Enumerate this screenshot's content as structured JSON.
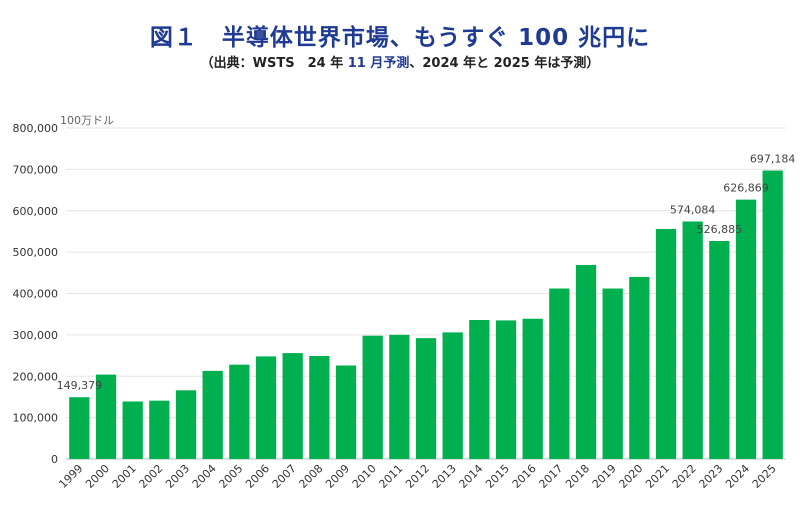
{
  "header": {
    "title": "図１　半導体世界市場、もうすぐ 100 兆円に",
    "subtitle": {
      "part1": "（出典：WSTS　24 年 ",
      "highlight": "11 月予測",
      "part2": "、2024 年と 2025 年は予測）"
    }
  },
  "colors": {
    "bar": "#00b04f",
    "title": "#1f3a93",
    "grid": "#e6e6e6",
    "axis": "#bfbfbf"
  },
  "chart_data": {
    "type": "bar",
    "unit_label": "100万ドル",
    "categories": [
      "1999",
      "2000",
      "2001",
      "2002",
      "2003",
      "2004",
      "2005",
      "2006",
      "2007",
      "2008",
      "2009",
      "2010",
      "2011",
      "2012",
      "2013",
      "2014",
      "2015",
      "2016",
      "2017",
      "2018",
      "2019",
      "2020",
      "2021",
      "2022",
      "2023",
      "2024",
      "2025"
    ],
    "values": [
      149379,
      204000,
      139000,
      141000,
      166000,
      213000,
      228000,
      248000,
      256000,
      249000,
      226000,
      298000,
      300000,
      292000,
      306000,
      336000,
      335000,
      339000,
      412000,
      469000,
      412000,
      440000,
      556000,
      574084,
      526885,
      626869,
      697184
    ],
    "data_labels": [
      {
        "index": 0,
        "text": "149,379"
      },
      {
        "index": 23,
        "text": "574,084"
      },
      {
        "index": 24,
        "text": "526,885"
      },
      {
        "index": 25,
        "text": "626,869"
      },
      {
        "index": 26,
        "text": "697,184"
      }
    ],
    "ylim": [
      0,
      800000
    ],
    "yticks": [
      0,
      100000,
      200000,
      300000,
      400000,
      500000,
      600000,
      700000,
      800000
    ],
    "ytick_labels": [
      "0",
      "100,000",
      "200,000",
      "300,000",
      "400,000",
      "500,000",
      "600,000",
      "700,000",
      "800,000"
    ],
    "grid": true,
    "legend": "none"
  }
}
